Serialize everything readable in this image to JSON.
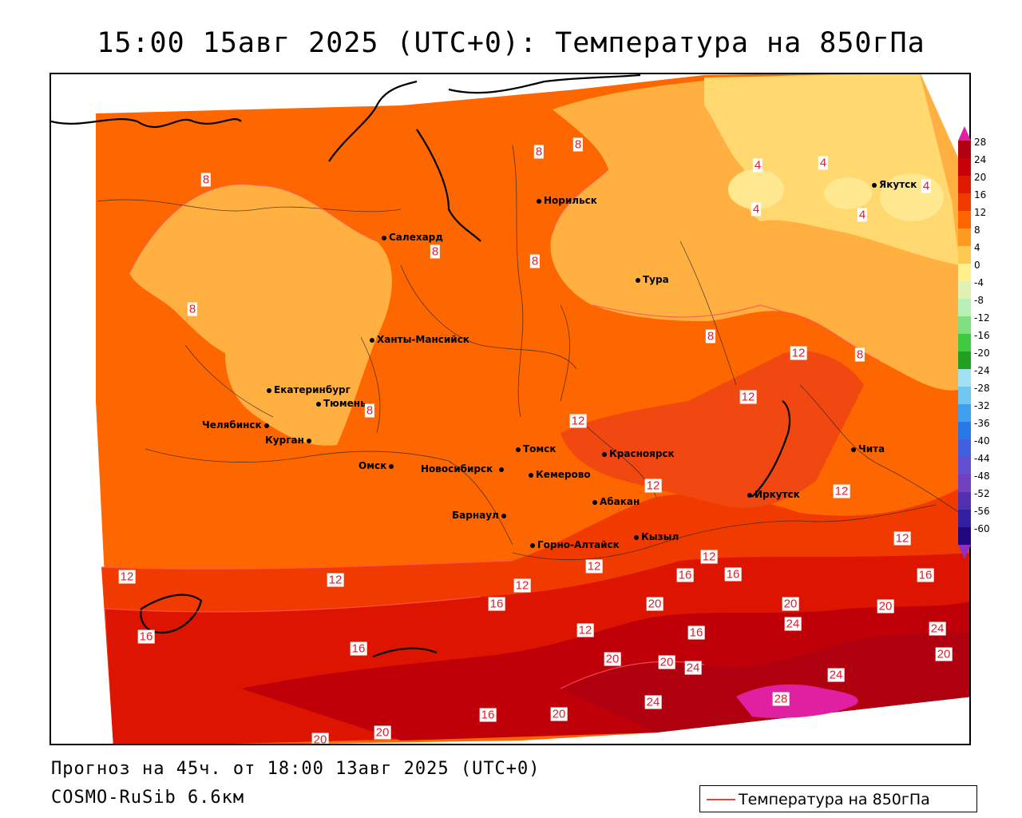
{
  "title": "15:00 15авг 2025 (UTC+0): Температура на 850гПа",
  "footer": {
    "forecast": "Прогноз на 45ч. от 18:00 13авг 2025 (UTC+0)",
    "model": "COSMO-RuSib 6.6км"
  },
  "legend": {
    "label": "Температура на 850гПа",
    "line_color": "#e8403a"
  },
  "colorbar": {
    "ticks": [
      "28",
      "24",
      "20",
      "16",
      "12",
      "8",
      "4",
      "0",
      "-4",
      "-8",
      "-12",
      "-16",
      "-20",
      "-24",
      "-28",
      "-32",
      "-36",
      "-40",
      "-44",
      "-48",
      "-52",
      "-56",
      "-60"
    ],
    "colors": [
      "#b00012",
      "#c8000a",
      "#e01a00",
      "#f03a00",
      "#ff6400",
      "#ff9a20",
      "#ffc850",
      "#fff08c",
      "#e0f0b0",
      "#b8f0b8",
      "#80e080",
      "#40c840",
      "#20a020",
      "#a0e0f0",
      "#70c8f0",
      "#40a0f0",
      "#2878e8",
      "#4060e0",
      "#6050d0",
      "#7040c0",
      "#5030b0",
      "#3020a0",
      "#200880"
    ],
    "top_color": "#e020a0"
  },
  "cities": [
    {
      "name": "Якутск"
    },
    {
      "name": "Норильск"
    },
    {
      "name": "Салехард"
    },
    {
      "name": "Тура"
    },
    {
      "name": "Ханты-Мансийск"
    },
    {
      "name": "Екатеринбург"
    },
    {
      "name": "Тюмень"
    },
    {
      "name": "Челябинск"
    },
    {
      "name": "Курган"
    },
    {
      "name": "Омск"
    },
    {
      "name": "Томск"
    },
    {
      "name": "Красноярск"
    },
    {
      "name": "Новосибирск"
    },
    {
      "name": "Кемерово"
    },
    {
      "name": "Абакан"
    },
    {
      "name": "Барнаул"
    },
    {
      "name": "Иркутск"
    },
    {
      "name": "Чита"
    },
    {
      "name": "Кызыл"
    },
    {
      "name": "Горно-Алтайск"
    }
  ],
  "contour_labels": [
    "8",
    "8",
    "8",
    "8",
    "8",
    "8",
    "8",
    "8",
    "8",
    "4",
    "4",
    "4",
    "4",
    "4",
    "12",
    "12",
    "12",
    "12",
    "12",
    "12",
    "12",
    "12",
    "12",
    "12",
    "12",
    "12",
    "16",
    "16",
    "16",
    "16",
    "16",
    "16",
    "16",
    "16",
    "20",
    "20",
    "20",
    "20",
    "20",
    "20",
    "20",
    "20",
    "20",
    "24",
    "24",
    "24",
    "24",
    "24",
    "28"
  ]
}
